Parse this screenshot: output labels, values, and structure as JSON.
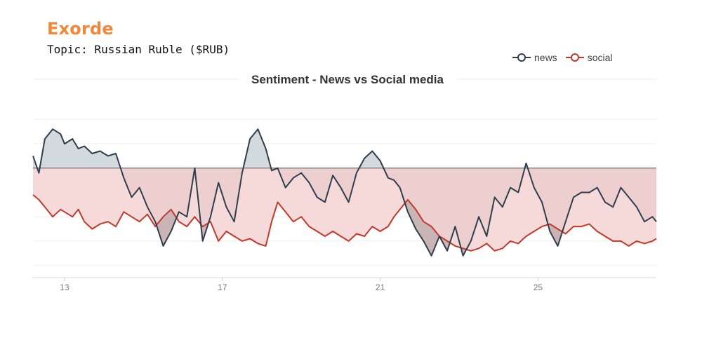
{
  "brand": "Exorde",
  "topic": "Topic: Russian Ruble ($RUB)",
  "colors": {
    "brand": "#f0883a",
    "news": "#2e3e4e",
    "social": "#c0392b",
    "news_fill_pos": "#d3dadd",
    "news_fill_neg": "#c9b5b5",
    "social_fill": "#f5d3d3"
  },
  "chart_data": {
    "type": "line",
    "title": "Sentiment - News vs Social media",
    "legend_position": "top-right",
    "grid": true,
    "x_tick_labels": [
      "13",
      "17",
      "21",
      "25"
    ],
    "x_tick_values": [
      13,
      17,
      21,
      25
    ],
    "xlim": [
      12.2,
      28.0
    ],
    "ylim": [
      -0.45,
      0.25
    ],
    "baseline": 0,
    "series": [
      {
        "name": "news",
        "x": [
          12.2,
          12.35,
          12.5,
          12.7,
          12.9,
          13.0,
          13.2,
          13.35,
          13.5,
          13.7,
          13.9,
          14.1,
          14.3,
          14.5,
          14.7,
          14.9,
          15.1,
          15.3,
          15.5,
          15.7,
          15.9,
          16.1,
          16.3,
          16.5,
          16.7,
          16.9,
          17.1,
          17.3,
          17.5,
          17.7,
          17.9,
          18.1,
          18.25,
          18.4,
          18.6,
          18.8,
          19.0,
          19.2,
          19.4,
          19.6,
          19.8,
          20.0,
          20.2,
          20.4,
          20.6,
          20.8,
          21.0,
          21.2,
          21.35,
          21.5,
          21.7,
          21.9,
          22.1,
          22.3,
          22.5,
          22.7,
          22.9,
          23.1,
          23.3,
          23.5,
          23.7,
          23.9,
          24.1,
          24.3,
          24.5,
          24.7,
          24.9,
          25.1,
          25.3,
          25.5,
          25.7,
          25.9,
          26.1,
          26.3,
          26.5,
          26.7,
          26.9,
          27.1,
          27.3,
          27.5,
          27.7,
          27.9,
          28.0
        ],
        "y": [
          0.05,
          -0.02,
          0.12,
          0.16,
          0.14,
          0.1,
          0.12,
          0.08,
          0.09,
          0.06,
          0.07,
          0.05,
          0.06,
          -0.04,
          -0.12,
          -0.08,
          -0.16,
          -0.22,
          -0.32,
          -0.26,
          -0.18,
          -0.2,
          0.0,
          -0.3,
          -0.2,
          -0.06,
          -0.16,
          -0.22,
          -0.02,
          0.12,
          0.16,
          0.08,
          -0.01,
          0.0,
          -0.08,
          -0.04,
          -0.02,
          -0.06,
          -0.12,
          -0.14,
          -0.03,
          -0.08,
          -0.14,
          -0.02,
          0.04,
          0.07,
          0.03,
          -0.04,
          -0.05,
          -0.08,
          -0.18,
          -0.25,
          -0.3,
          -0.36,
          -0.28,
          -0.34,
          -0.24,
          -0.36,
          -0.3,
          -0.2,
          -0.28,
          -0.12,
          -0.16,
          -0.08,
          -0.1,
          0.02,
          -0.08,
          -0.14,
          -0.26,
          -0.32,
          -0.22,
          -0.12,
          -0.1,
          -0.1,
          -0.08,
          -0.14,
          -0.16,
          -0.08,
          -0.12,
          -0.16,
          -0.22,
          -0.2,
          -0.22
        ]
      },
      {
        "name": "social",
        "x": [
          12.2,
          12.35,
          12.5,
          12.7,
          12.9,
          13.0,
          13.2,
          13.35,
          13.5,
          13.7,
          13.9,
          14.1,
          14.3,
          14.5,
          14.7,
          14.9,
          15.1,
          15.3,
          15.5,
          15.7,
          15.9,
          16.1,
          16.3,
          16.5,
          16.7,
          16.9,
          17.1,
          17.3,
          17.5,
          17.7,
          17.9,
          18.1,
          18.25,
          18.4,
          18.6,
          18.8,
          19.0,
          19.2,
          19.4,
          19.6,
          19.8,
          20.0,
          20.2,
          20.4,
          20.6,
          20.8,
          21.0,
          21.2,
          21.35,
          21.5,
          21.7,
          21.9,
          22.1,
          22.3,
          22.5,
          22.7,
          22.9,
          23.1,
          23.3,
          23.5,
          23.7,
          23.9,
          24.1,
          24.3,
          24.5,
          24.7,
          24.9,
          25.1,
          25.3,
          25.5,
          25.7,
          25.9,
          26.1,
          26.3,
          26.5,
          26.7,
          26.9,
          27.1,
          27.3,
          27.5,
          27.7,
          27.9,
          28.0
        ],
        "y": [
          -0.11,
          -0.13,
          -0.16,
          -0.2,
          -0.17,
          -0.18,
          -0.2,
          -0.17,
          -0.22,
          -0.25,
          -0.23,
          -0.22,
          -0.24,
          -0.18,
          -0.2,
          -0.22,
          -0.19,
          -0.24,
          -0.2,
          -0.17,
          -0.22,
          -0.24,
          -0.2,
          -0.24,
          -0.22,
          -0.3,
          -0.26,
          -0.28,
          -0.3,
          -0.29,
          -0.31,
          -0.32,
          -0.22,
          -0.14,
          -0.18,
          -0.22,
          -0.2,
          -0.24,
          -0.26,
          -0.28,
          -0.26,
          -0.28,
          -0.3,
          -0.27,
          -0.28,
          -0.24,
          -0.26,
          -0.24,
          -0.2,
          -0.17,
          -0.13,
          -0.17,
          -0.22,
          -0.24,
          -0.28,
          -0.3,
          -0.32,
          -0.33,
          -0.34,
          -0.33,
          -0.31,
          -0.34,
          -0.33,
          -0.3,
          -0.31,
          -0.28,
          -0.26,
          -0.24,
          -0.23,
          -0.25,
          -0.27,
          -0.24,
          -0.24,
          -0.23,
          -0.26,
          -0.28,
          -0.3,
          -0.3,
          -0.32,
          -0.3,
          -0.31,
          -0.3,
          -0.29
        ]
      }
    ]
  }
}
